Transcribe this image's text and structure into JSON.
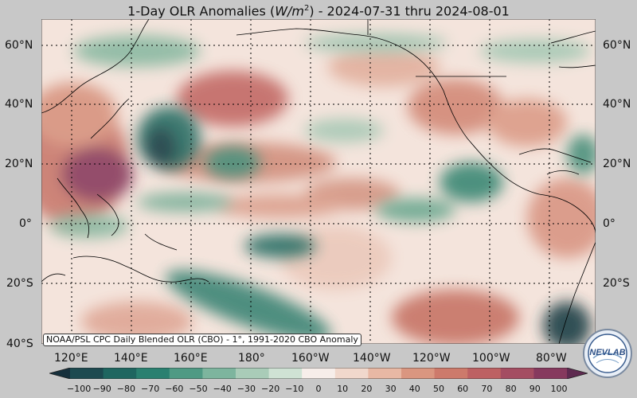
{
  "title": {
    "prefix": "1-Day OLR Anomalies (",
    "unit_main": "W/m",
    "unit_exp": "2",
    "suffix": ") - 2024-07-31 thru 2024-08-01"
  },
  "lat_labels": [
    "60°N",
    "40°N",
    "20°N",
    "0°",
    "20°S",
    "40°S"
  ],
  "lon_labels": [
    "120°E",
    "140°E",
    "160°E",
    "180°",
    "160°W",
    "140°W",
    "120°W",
    "100°W",
    "80°W"
  ],
  "credit": "NOAA/PSL CPC Daily Blended OLR (CBO) - 1°, 1991-2020 CBO Anomaly",
  "colorbar": {
    "ticks": [
      "−100",
      "−90",
      "−80",
      "−70",
      "−60",
      "−50",
      "−40",
      "−30",
      "−20",
      "−10",
      "0",
      "10",
      "20",
      "30",
      "40",
      "50",
      "60",
      "70",
      "80",
      "90",
      "100"
    ],
    "colors": [
      "#16303c",
      "#1d4a50",
      "#1f6660",
      "#2a8070",
      "#4f9a84",
      "#7db59e",
      "#a9ccb8",
      "#cfe2d4",
      "#f7eeea",
      "#f1d8cc",
      "#e8b8a4",
      "#da9680",
      "#cd7a6b",
      "#bd6163",
      "#a44d62",
      "#86395e",
      "#5e2a50"
    ]
  },
  "logo_text": "NEVLAB",
  "colors": {
    "background": "#c8c8c8",
    "ocean_base": "#f4e4dc",
    "wet_anomaly": "#1f6660",
    "dry_anomaly": "#bd6163"
  }
}
